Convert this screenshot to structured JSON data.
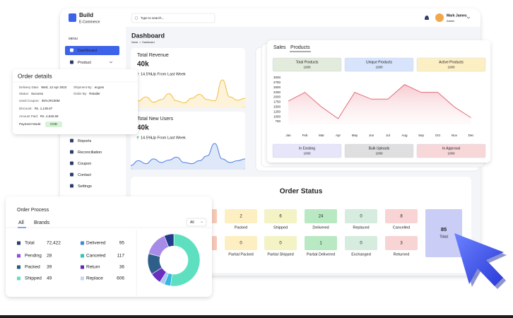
{
  "brand": {
    "name": "Build",
    "sub": "E-Commerce"
  },
  "search_placeholder": "Type to search...",
  "user": {
    "name": "Mark James",
    "role": "Admin"
  },
  "menu": {
    "heading": "MENU",
    "items": [
      "Dashboard",
      "Product",
      "Reports",
      "Reconciliation",
      "Coupon",
      "Contact",
      "Settings"
    ]
  },
  "page": {
    "title": "Dashboard",
    "breadcrumb": [
      "Home",
      "Dashboard"
    ]
  },
  "revenue": {
    "title": "Total Revenue",
    "value": "40k",
    "change_pct": "14.5%",
    "change_text": "Up From Last Week",
    "color": "#f2bd3a",
    "values": [
      12,
      22,
      34,
      18,
      26,
      44,
      22,
      16,
      30,
      42,
      26,
      22,
      86,
      34,
      24,
      30
    ]
  },
  "users": {
    "title": "Total New Users",
    "value": "40k",
    "change_pct": "14.5%",
    "change_text": "Up From Last Week",
    "color": "#4a7fe0",
    "values": [
      14,
      30,
      20,
      36,
      24,
      32,
      42,
      24,
      20,
      30,
      46,
      88,
      36,
      24,
      30,
      36
    ]
  },
  "products": {
    "tabs": [
      "Sales",
      "Products"
    ],
    "stats": [
      {
        "label": "Total Products",
        "value": 1000,
        "color": "#e3ebdc"
      },
      {
        "label": "Unique Products",
        "value": 1000,
        "color": "#d7e4fb"
      },
      {
        "label": "Active Products",
        "value": 1000,
        "color": "#fcefc4"
      }
    ],
    "chart": {
      "type": "line",
      "color": "#e36b78",
      "categories": [
        "Jan",
        "Feb",
        "Mar",
        "Apr",
        "May",
        "Jun",
        "Jul",
        "Aug",
        "Sep",
        "Oct",
        "Nov",
        "Dec"
      ],
      "values": [
        1800,
        2250,
        1500,
        900,
        2250,
        1900,
        1900,
        2650,
        2250,
        2250,
        1500,
        950
      ],
      "ylim": [
        750,
        3000
      ],
      "yticks": [
        750,
        1000,
        1250,
        1500,
        1750,
        2000,
        2250,
        2500,
        2750,
        3000
      ],
      "grid": false
    },
    "bottom_stats": [
      {
        "label": "In Existing",
        "value": 1000,
        "color": "#e6e5fa"
      },
      {
        "label": "Bulk Uploads",
        "value": 1000,
        "color": "#dfdfdf"
      },
      {
        "label": "In Approval",
        "value": 1000,
        "color": "#f8d7d9"
      }
    ]
  },
  "order_details": {
    "title": "Order details",
    "fields": [
      {
        "label": "Delivery Date:",
        "value": "Wed, 12 Apr 2023"
      },
      {
        "label": "Shipment By:",
        "value": "ecgom"
      },
      {
        "label": "Status:",
        "value": "Success"
      },
      {
        "label": "Order By:",
        "value": "Retailer"
      },
      {
        "label": "Used Coupon:",
        "value": "35%,RG30M"
      },
      {
        "label": "Discount:",
        "value": "Rs. 1,135.67"
      },
      {
        "label": "Amount Paid:",
        "value": "Rs. 4,540.69"
      },
      {
        "label": "Payment Mode:",
        "value": "COD"
      }
    ]
  },
  "order_status": {
    "title": "Order Status",
    "items": [
      {
        "value": 2,
        "label": "Packed",
        "color": "#fdefc2"
      },
      {
        "value": 6,
        "label": "Shipped",
        "color": "#f3f3c6"
      },
      {
        "value": 24,
        "label": "Delivered",
        "color": "#b9e9c3"
      },
      {
        "value": 0,
        "label": "Replaced",
        "color": "#d6ecdf"
      },
      {
        "value": 8,
        "label": "Cancelled",
        "color": "#f8d4d4"
      },
      {
        "value": 0,
        "label": "Partial Packed",
        "color": "#fdefc2"
      },
      {
        "value": 0,
        "label": "Partial Shipped",
        "color": "#f3f3c6"
      },
      {
        "value": 1,
        "label": "Partial Delivered",
        "color": "#b9e9c3"
      },
      {
        "value": 0,
        "label": "Exchanged",
        "color": "#d6ecdf"
      },
      {
        "value": 3,
        "label": "Returned",
        "color": "#f8d4d4"
      }
    ],
    "total": {
      "value": 85,
      "label": "Total",
      "color": "#cacdf6"
    }
  },
  "order_process": {
    "title": "Order Process",
    "filter": "All",
    "tabs": [
      "All",
      "Brands"
    ],
    "legend": [
      {
        "name": "Total",
        "value": 72422,
        "value_label": "72,422",
        "color": "#2b3d6b"
      },
      {
        "name": "Pending",
        "value": 28,
        "color": "#8a4fe0"
      },
      {
        "name": "Packed",
        "value": 39,
        "color": "#1f5f7a"
      },
      {
        "name": "Shipped",
        "value": 49,
        "color": "#5ee0c0"
      },
      {
        "name": "Delivered",
        "value": 95,
        "color": "#3a8ad8"
      },
      {
        "name": "Canceled",
        "value": 117,
        "color": "#2ec4b6"
      },
      {
        "name": "Return",
        "value": 36,
        "color": "#5b2ab0"
      },
      {
        "name": "Replace",
        "value": 606,
        "color": "#c4d2f2"
      }
    ],
    "donut": [
      {
        "value": 52,
        "color": "#5ee0c0"
      },
      {
        "value": 4,
        "color": "#38b6e0"
      },
      {
        "value": 3,
        "color": "#a9c8f5"
      },
      {
        "value": 7,
        "color": "#6a2fc0"
      },
      {
        "value": 13,
        "color": "#2e5f8a"
      },
      {
        "value": 15,
        "color": "#a68be8"
      },
      {
        "value": 6,
        "color": "#243a8a"
      }
    ]
  }
}
